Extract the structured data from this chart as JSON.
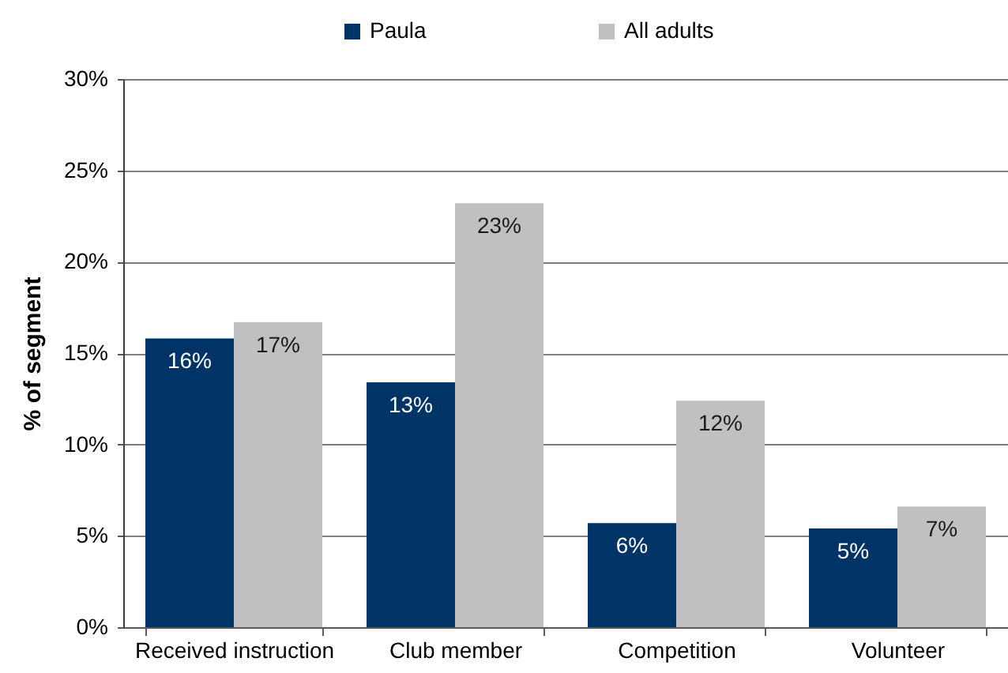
{
  "chart_data": {
    "type": "bar",
    "ylabel": "% of segment",
    "categories": [
      "Received instruction",
      "Club member",
      "Competition",
      "Volunteer"
    ],
    "series": [
      {
        "name": "Paula",
        "color": "#003366",
        "values": [
          15.8,
          13.4,
          5.7,
          5.4
        ],
        "value_labels": [
          "16%",
          "13%",
          "6%",
          "5%"
        ]
      },
      {
        "name": "All adults",
        "color": "#c0c0c0",
        "values": [
          16.7,
          23.2,
          12.4,
          6.6
        ],
        "value_labels": [
          "17%",
          "23%",
          "12%",
          "7%"
        ]
      }
    ],
    "ylim": [
      0,
      30
    ],
    "yticks": [
      {
        "value": 0,
        "label": "0%"
      },
      {
        "value": 5,
        "label": "5%"
      },
      {
        "value": 10,
        "label": "10%"
      },
      {
        "value": 15,
        "label": "15%"
      },
      {
        "value": 20,
        "label": "20%"
      },
      {
        "value": 25,
        "label": "25%"
      },
      {
        "value": 30,
        "label": "30%"
      }
    ],
    "grid": "y",
    "legend": "top"
  }
}
